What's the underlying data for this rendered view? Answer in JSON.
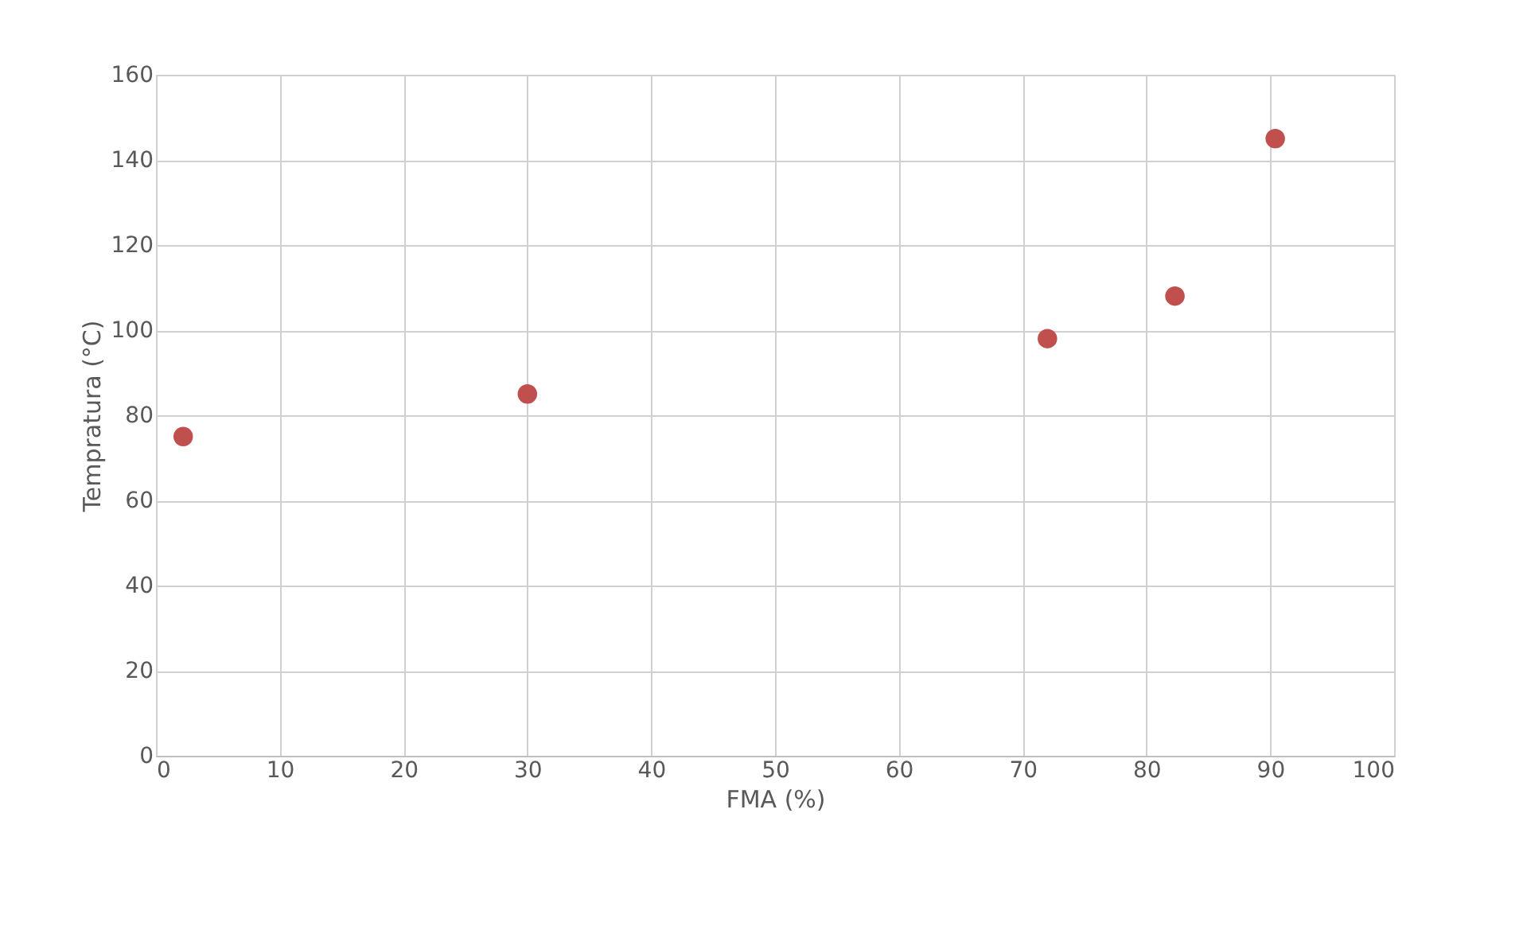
{
  "chart_data": {
    "type": "scatter",
    "xlabel": "FMA (%)",
    "ylabel": "Tempratura (°C)",
    "x": [
      2.2,
      30,
      72,
      82.3,
      90.4
    ],
    "series": [
      {
        "color": "#c0504d",
        "values": [
          75,
          85,
          98,
          108,
          145
        ]
      }
    ],
    "xlim": [
      0,
      100
    ],
    "xticks": [
      0,
      10,
      20,
      30,
      40,
      50,
      60,
      70,
      80,
      90,
      100
    ],
    "ylim": [
      0,
      160
    ],
    "yticks": [
      0,
      20,
      40,
      60,
      80,
      100,
      120,
      140,
      160
    ],
    "grid": true,
    "marker": "circle",
    "legend": false
  }
}
